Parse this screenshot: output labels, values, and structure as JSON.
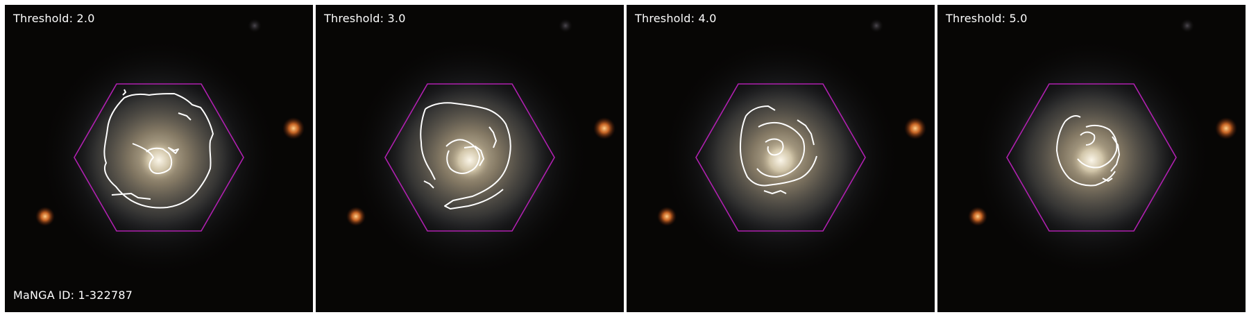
{
  "panels": [
    {
      "threshold_label": "Threshold: 2.0"
    },
    {
      "threshold_label": "Threshold: 3.0"
    },
    {
      "threshold_label": "Threshold: 4.0"
    },
    {
      "threshold_label": "Threshold: 5.0"
    }
  ],
  "manga_id_label": "MaNGA ID: 1-322787",
  "colors": {
    "hexagon": "#b020b0",
    "contour": "#ffffff",
    "background": "#070605",
    "galaxy_core": "#f2ecd6",
    "star": "#ff8a2a"
  }
}
